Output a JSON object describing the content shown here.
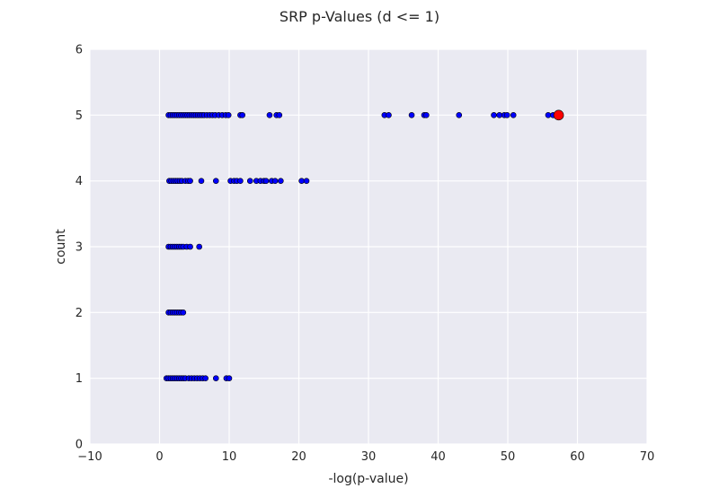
{
  "chart_data": {
    "type": "scatter",
    "title": "SRP p-Values (d <= 1)",
    "xlabel": "-log(p-value)",
    "ylabel": "count",
    "xlim": [
      -10,
      70
    ],
    "ylim": [
      0,
      6
    ],
    "xticks": [
      "−10",
      "0",
      "10",
      "20",
      "30",
      "40",
      "50",
      "60",
      "70"
    ],
    "xtick_values": [
      -10,
      0,
      10,
      20,
      30,
      40,
      50,
      60,
      70
    ],
    "yticks": [
      "0",
      "1",
      "2",
      "3",
      "4",
      "5",
      "6"
    ],
    "ytick_values": [
      0,
      1,
      2,
      3,
      4,
      5,
      6
    ],
    "grid": true,
    "background": "#eaeaf2",
    "grid_color": "#ffffff",
    "series": [
      {
        "color": "#0000ff",
        "marker": "circle",
        "points": [
          [
            1.3,
            5
          ],
          [
            1.6,
            5
          ],
          [
            1.9,
            5
          ],
          [
            2.2,
            5
          ],
          [
            2.5,
            5
          ],
          [
            2.8,
            5
          ],
          [
            3.1,
            5
          ],
          [
            3.4,
            5
          ],
          [
            3.7,
            5
          ],
          [
            4.0,
            5
          ],
          [
            4.3,
            5
          ],
          [
            4.6,
            5
          ],
          [
            4.9,
            5
          ],
          [
            5.2,
            5
          ],
          [
            5.5,
            5
          ],
          [
            5.8,
            5
          ],
          [
            6.1,
            5
          ],
          [
            6.4,
            5
          ],
          [
            6.8,
            5
          ],
          [
            7.2,
            5
          ],
          [
            7.6,
            5
          ],
          [
            8.0,
            5
          ],
          [
            8.5,
            5
          ],
          [
            9.0,
            5
          ],
          [
            9.5,
            5
          ],
          [
            9.9,
            5
          ],
          [
            11.6,
            5
          ],
          [
            11.9,
            5
          ],
          [
            15.8,
            5
          ],
          [
            16.8,
            5
          ],
          [
            17.2,
            5
          ],
          [
            32.3,
            5
          ],
          [
            32.9,
            5
          ],
          [
            36.2,
            5
          ],
          [
            38.0,
            5
          ],
          [
            38.3,
            5
          ],
          [
            43.0,
            5
          ],
          [
            48.0,
            5
          ],
          [
            48.8,
            5
          ],
          [
            49.5,
            5
          ],
          [
            49.9,
            5
          ],
          [
            50.8,
            5
          ],
          [
            55.8,
            5
          ],
          [
            56.5,
            5
          ],
          [
            1.4,
            4
          ],
          [
            1.7,
            4
          ],
          [
            2.0,
            4
          ],
          [
            2.3,
            4
          ],
          [
            2.6,
            4
          ],
          [
            2.9,
            4
          ],
          [
            3.2,
            4
          ],
          [
            3.7,
            4
          ],
          [
            4.1,
            4
          ],
          [
            4.4,
            4
          ],
          [
            6.0,
            4
          ],
          [
            8.1,
            4
          ],
          [
            10.2,
            4
          ],
          [
            10.7,
            4
          ],
          [
            11.1,
            4
          ],
          [
            11.6,
            4
          ],
          [
            13.0,
            4
          ],
          [
            13.9,
            4
          ],
          [
            14.5,
            4
          ],
          [
            15.0,
            4
          ],
          [
            15.3,
            4
          ],
          [
            16.1,
            4
          ],
          [
            16.6,
            4
          ],
          [
            17.4,
            4
          ],
          [
            20.4,
            4
          ],
          [
            21.1,
            4
          ],
          [
            1.3,
            3
          ],
          [
            1.6,
            3
          ],
          [
            1.9,
            3
          ],
          [
            2.2,
            3
          ],
          [
            2.5,
            3
          ],
          [
            2.8,
            3
          ],
          [
            3.1,
            3
          ],
          [
            3.4,
            3
          ],
          [
            3.9,
            3
          ],
          [
            4.4,
            3
          ],
          [
            5.7,
            3
          ],
          [
            1.3,
            2
          ],
          [
            1.6,
            2
          ],
          [
            1.9,
            2
          ],
          [
            2.2,
            2
          ],
          [
            2.5,
            2
          ],
          [
            2.8,
            2
          ],
          [
            3.1,
            2
          ],
          [
            3.4,
            2
          ],
          [
            1.0,
            1
          ],
          [
            1.3,
            1
          ],
          [
            1.6,
            1
          ],
          [
            1.9,
            1
          ],
          [
            2.2,
            1
          ],
          [
            2.5,
            1
          ],
          [
            2.8,
            1
          ],
          [
            3.1,
            1
          ],
          [
            3.4,
            1
          ],
          [
            3.7,
            1
          ],
          [
            4.2,
            1
          ],
          [
            4.6,
            1
          ],
          [
            5.0,
            1
          ],
          [
            5.4,
            1
          ],
          [
            5.8,
            1
          ],
          [
            6.2,
            1
          ],
          [
            6.6,
            1
          ],
          [
            8.1,
            1
          ],
          [
            9.6,
            1
          ],
          [
            10.0,
            1
          ]
        ]
      },
      {
        "color": "#ff0000",
        "marker": "circle-large",
        "points": [
          [
            57.3,
            5
          ]
        ]
      }
    ]
  }
}
